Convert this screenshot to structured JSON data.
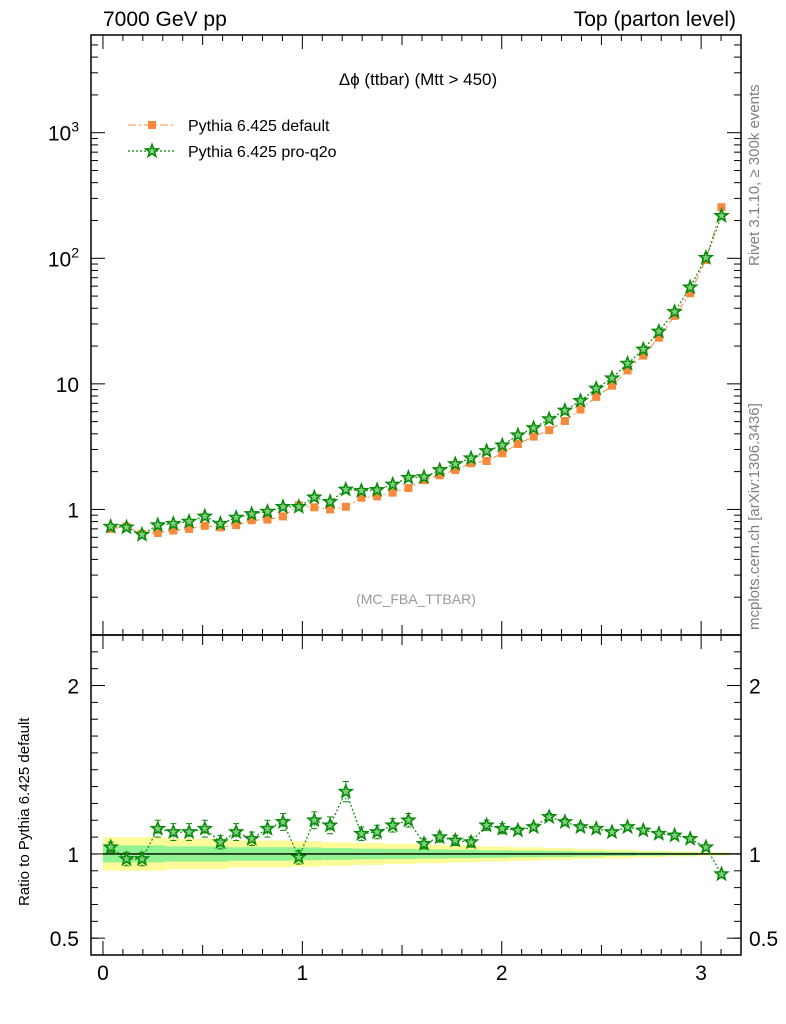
{
  "header": {
    "left": "7000 GeV pp",
    "right": "Top (parton level)"
  },
  "side": {
    "rivet": "Rivet 3.1.10, ≥ 300k events",
    "mcplots": "mcplots.cern.ch [arXiv:1306.3436]"
  },
  "colors": {
    "default": "#f58a3c",
    "proq2o": "#0a8a0a",
    "band_yellow": "#fdfa98",
    "band_green": "#90f290",
    "frame": "#000000"
  },
  "chart_data": [
    {
      "type": "line",
      "title": "Δϕ (ttbar) (Mtt > 450)",
      "watermark": "(MC_FBA_TTBAR)",
      "yscale": "log",
      "ylim": [
        0.1,
        6000
      ],
      "xlim": [
        -0.06,
        3.2
      ],
      "yticks": [
        {
          "value": 1,
          "label": "1"
        },
        {
          "value": 10,
          "label": "10"
        },
        {
          "value": 100,
          "label": "10",
          "sup": "2"
        },
        {
          "value": 1000,
          "label": "10",
          "sup": "3"
        }
      ],
      "legend_position": "top-left",
      "x": [
        0.039,
        0.118,
        0.196,
        0.275,
        0.353,
        0.432,
        0.511,
        0.589,
        0.668,
        0.746,
        0.825,
        0.903,
        0.982,
        1.06,
        1.139,
        1.218,
        1.296,
        1.375,
        1.453,
        1.532,
        1.61,
        1.689,
        1.767,
        1.846,
        1.924,
        2.003,
        2.081,
        2.16,
        2.238,
        2.317,
        2.395,
        2.474,
        2.553,
        2.631,
        2.71,
        2.788,
        2.867,
        2.945,
        3.024,
        3.102
      ],
      "series": [
        {
          "name": "Pythia 6.425 default",
          "color": "#f58a3c",
          "marker": "square",
          "values": [
            0.7,
            0.73,
            0.64,
            0.65,
            0.68,
            0.7,
            0.74,
            0.72,
            0.75,
            0.82,
            0.83,
            0.88,
            1.08,
            1.04,
            1.0,
            1.05,
            1.24,
            1.27,
            1.36,
            1.48,
            1.71,
            1.87,
            2.06,
            2.33,
            2.43,
            2.8,
            3.32,
            3.8,
            4.28,
            5.06,
            6.25,
            7.88,
            9.67,
            12.8,
            16.8,
            23.3,
            34.8,
            52.7,
            97.0,
            255
          ]
        },
        {
          "name": "Pythia 6.425 pro-q2o",
          "color": "#0a8a0a",
          "marker": "star",
          "values": [
            0.73,
            0.72,
            0.63,
            0.75,
            0.77,
            0.8,
            0.88,
            0.77,
            0.86,
            0.92,
            0.96,
            1.05,
            1.05,
            1.25,
            1.15,
            1.44,
            1.41,
            1.43,
            1.58,
            1.79,
            1.81,
            2.06,
            2.3,
            2.56,
            2.92,
            3.24,
            3.9,
            4.45,
            5.24,
            6.13,
            7.33,
            9.18,
            11.1,
            14.5,
            18.8,
            26.1,
            37.5,
            58.7,
            101,
            218
          ]
        }
      ]
    },
    {
      "type": "line",
      "ylabel": "Ratio to Pythia 6.425 default",
      "ylim": [
        0.4,
        2.3
      ],
      "xlim": [
        -0.06,
        3.2
      ],
      "yticks": [
        0.5,
        1,
        2
      ],
      "xticks": [
        0,
        1,
        2,
        3
      ],
      "x": [
        0.039,
        0.118,
        0.196,
        0.275,
        0.353,
        0.432,
        0.511,
        0.589,
        0.668,
        0.746,
        0.825,
        0.903,
        0.982,
        1.06,
        1.139,
        1.218,
        1.296,
        1.375,
        1.453,
        1.532,
        1.61,
        1.689,
        1.767,
        1.846,
        1.924,
        2.003,
        2.081,
        2.16,
        2.238,
        2.317,
        2.395,
        2.474,
        2.553,
        2.631,
        2.71,
        2.788,
        2.867,
        2.945,
        3.024,
        3.102
      ],
      "series": [
        {
          "name": "Pythia 6.425 pro-q2o",
          "color": "#0a8a0a",
          "values": [
            1.04,
            0.97,
            0.97,
            1.15,
            1.13,
            1.13,
            1.15,
            1.07,
            1.13,
            1.09,
            1.15,
            1.19,
            0.98,
            1.2,
            1.17,
            1.37,
            1.12,
            1.13,
            1.17,
            1.2,
            1.06,
            1.1,
            1.08,
            1.07,
            1.17,
            1.15,
            1.14,
            1.16,
            1.22,
            1.19,
            1.16,
            1.15,
            1.13,
            1.16,
            1.14,
            1.12,
            1.11,
            1.09,
            1.04,
            0.88
          ],
          "errors": [
            0.03,
            0.04,
            0.04,
            0.05,
            0.05,
            0.05,
            0.05,
            0.04,
            0.05,
            0.04,
            0.05,
            0.05,
            0.04,
            0.05,
            0.05,
            0.06,
            0.04,
            0.04,
            0.04,
            0.04,
            0.03,
            0.03,
            0.03,
            0.03,
            0.03,
            0.03,
            0.02,
            0.02,
            0.02,
            0.02,
            0.02,
            0.01,
            0.01,
            0.01,
            0.01,
            0.01,
            0.01,
            0.01,
            0.01,
            0.01
          ]
        }
      ],
      "band_yellow_halfwidth": [
        0.1,
        0.1,
        0.1,
        0.1,
        0.09,
        0.09,
        0.09,
        0.09,
        0.08,
        0.08,
        0.08,
        0.08,
        0.075,
        0.075,
        0.07,
        0.07,
        0.065,
        0.065,
        0.06,
        0.06,
        0.055,
        0.055,
        0.05,
        0.05,
        0.045,
        0.045,
        0.04,
        0.04,
        0.035,
        0.035,
        0.03,
        0.03,
        0.025,
        0.025,
        0.02,
        0.02,
        0.015,
        0.015,
        0.01,
        0.01
      ],
      "band_green_halfwidth": [
        0.05,
        0.05,
        0.05,
        0.05,
        0.045,
        0.045,
        0.045,
        0.045,
        0.04,
        0.04,
        0.04,
        0.04,
        0.038,
        0.038,
        0.035,
        0.035,
        0.032,
        0.032,
        0.03,
        0.03,
        0.027,
        0.027,
        0.025,
        0.025,
        0.022,
        0.022,
        0.02,
        0.02,
        0.018,
        0.018,
        0.015,
        0.015,
        0.012,
        0.012,
        0.01,
        0.01,
        0.008,
        0.008,
        0.005,
        0.005
      ]
    }
  ]
}
